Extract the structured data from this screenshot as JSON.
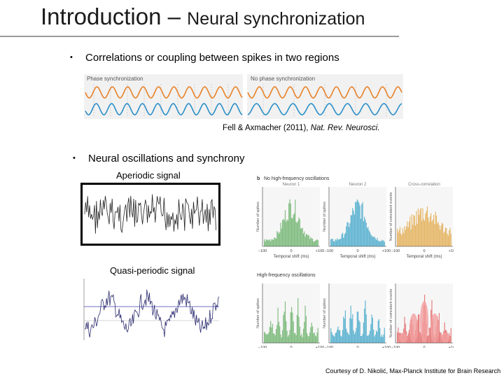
{
  "title": {
    "main": "Introduction – ",
    "sub": "Neural synchronization"
  },
  "bullets": [
    {
      "text": "Correlations or coupling between spikes in two regions"
    },
    {
      "text": "Neural oscillations and synchrony"
    }
  ],
  "bullet_glyph": "•",
  "figure_sync": {
    "left_label": "Phase synchronization",
    "right_label": "No phase synchronization"
  },
  "citation": {
    "authors": "Fell & Axmacher (2011), ",
    "journal": "Nat. Rev. Neurosci."
  },
  "signals": {
    "aperiodic": "Aperiodic signal",
    "quasi_periodic": "Quasi-periodic signal"
  },
  "histograms": {
    "panel_b": "b",
    "row_low": "No high-frequency oscillations",
    "row_high": "High-frequency oscillations",
    "cols": [
      "Neuron 1",
      "Neuron 2",
      "Cross-correlation"
    ],
    "ylabels": [
      "Number of spikes",
      "Number of spikes",
      "Number of coincident events"
    ],
    "xlabel": "Temporal shift (ms)",
    "ticks": [
      "−100",
      "0",
      "+100"
    ],
    "colors": {
      "green": "#5aa85a",
      "blue": "#2e9dc4",
      "orange": "#e0a23a",
      "red": "#e05050"
    }
  },
  "credit": "Courtesy of D. Nikolić, Max-Planck Institute for Brain Research"
}
